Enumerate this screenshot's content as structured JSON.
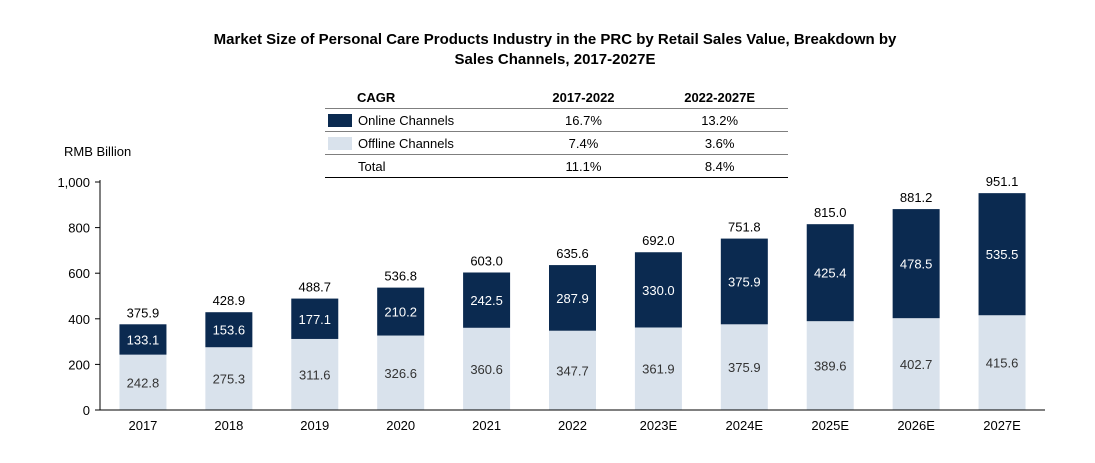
{
  "title": {
    "line1": "Market Size of Personal Care Products Industry in the PRC by Retail Sales Value, Breakdown by",
    "line2": "Sales Channels, 2017-2027E"
  },
  "colors": {
    "online": "#0b2a50",
    "offline": "#d9e2ec"
  },
  "cagr_table": {
    "header": [
      "CAGR",
      "2017-2022",
      "2022-2027E"
    ],
    "rows": [
      {
        "label": "Online Channels",
        "v1": "16.7%",
        "v2": "13.2%"
      },
      {
        "label": "Offline Channels",
        "v1": "7.4%",
        "v2": "3.6%"
      },
      {
        "label": "Total",
        "v1": "11.1%",
        "v2": "8.4%"
      }
    ]
  },
  "chart_data": {
    "type": "bar",
    "stacked": true,
    "title": "Market Size of Personal Care Products Industry in the PRC by Retail Sales Value, Breakdown by Sales Channels, 2017-2027E",
    "ylabel": "RMB Billion",
    "xlabel": "",
    "ylim": [
      0,
      1000
    ],
    "yticks": [
      "0",
      "200",
      "400",
      "600",
      "800",
      "1,000"
    ],
    "categories": [
      "2017",
      "2018",
      "2019",
      "2020",
      "2021",
      "2022",
      "2023E",
      "2024E",
      "2025E",
      "2026E",
      "2027E"
    ],
    "series": [
      {
        "name": "Offline Channels",
        "values": [
          242.8,
          275.3,
          311.6,
          326.6,
          360.6,
          347.7,
          361.9,
          375.9,
          389.6,
          402.7,
          415.6
        ]
      },
      {
        "name": "Online Channels",
        "values": [
          133.1,
          153.6,
          177.1,
          210.2,
          242.5,
          287.9,
          330.0,
          375.9,
          425.4,
          478.5,
          535.5
        ]
      }
    ],
    "offline_labels": [
      "242.8",
      "275.3",
      "311.6",
      "326.6",
      "360.6",
      "347.7",
      "361.9",
      "375.9",
      "389.6",
      "402.7",
      "415.6"
    ],
    "online_labels": [
      "133.1",
      "153.6",
      "177.1",
      "210.2",
      "242.5",
      "287.9",
      "330.0",
      "375.9",
      "425.4",
      "478.5",
      "535.5"
    ],
    "totals": [
      "375.9",
      "428.9",
      "488.7",
      "536.8",
      "603.0",
      "635.6",
      "692.0",
      "751.8",
      "815.0",
      "881.2",
      "951.1"
    ]
  }
}
